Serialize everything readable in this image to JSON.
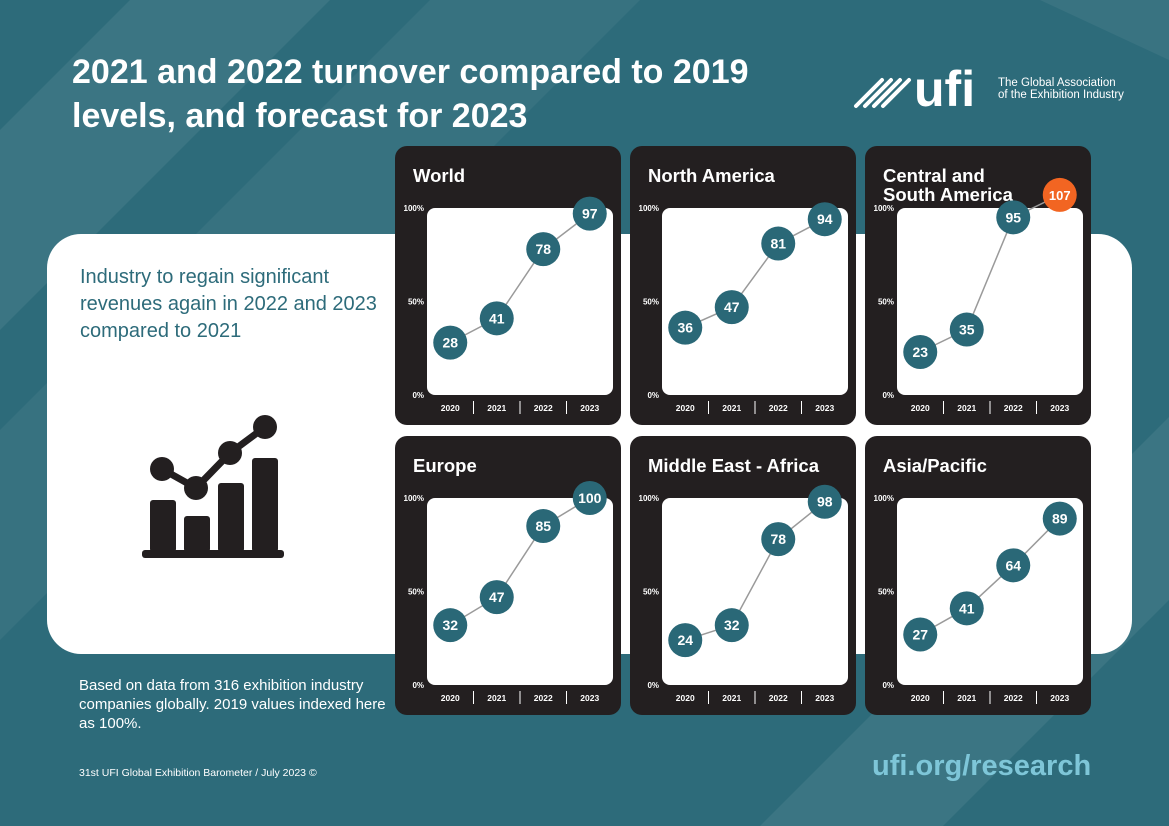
{
  "header": {
    "title": "2021 and 2022 turnover compared to 2019 levels, and forecast for 2023",
    "logo_mark": "ufi",
    "logo_text": "The Global Association of the Exhibition Industry"
  },
  "left": {
    "headline": "Industry to regain significant revenues again in 2022 and 2023 compared to 2021",
    "icon": "trend-chart-icon"
  },
  "footer": {
    "footnote": "Based on data from 316 exhibition industry companies globally. 2019 values indexed here as 100%.",
    "source": "31st UFI Global Exhibition Barometer / July 2023 ©",
    "url": "ufi.org/research"
  },
  "colors": {
    "background": "#2d6b7a",
    "marker": "#2a6877",
    "highlight": "#f26522",
    "panel": "#231f20",
    "url": "#7ec6d8"
  },
  "chart_data": [
    {
      "type": "line",
      "title": "World",
      "x": [
        "2020",
        "2021",
        "2022",
        "2023"
      ],
      "y_ticks": [
        "0%",
        "50%",
        "100%"
      ],
      "ylim": [
        0,
        100
      ],
      "series": [
        {
          "values": [
            28,
            41,
            78,
            97
          ]
        }
      ]
    },
    {
      "type": "line",
      "title": "North America",
      "x": [
        "2020",
        "2021",
        "2022",
        "2023"
      ],
      "y_ticks": [
        "0%",
        "50%",
        "100%"
      ],
      "ylim": [
        0,
        100
      ],
      "series": [
        {
          "values": [
            36,
            47,
            81,
            94
          ]
        }
      ]
    },
    {
      "type": "line",
      "title": "Central and South America",
      "x": [
        "2020",
        "2021",
        "2022",
        "2023"
      ],
      "y_ticks": [
        "0%",
        "50%",
        "100%"
      ],
      "ylim": [
        0,
        100
      ],
      "series": [
        {
          "values": [
            23,
            35,
            95,
            107
          ]
        }
      ],
      "highlight_index": 3
    },
    {
      "type": "line",
      "title": "Europe",
      "x": [
        "2020",
        "2021",
        "2022",
        "2023"
      ],
      "y_ticks": [
        "0%",
        "50%",
        "100%"
      ],
      "ylim": [
        0,
        100
      ],
      "series": [
        {
          "values": [
            32,
            47,
            85,
            100
          ]
        }
      ]
    },
    {
      "type": "line",
      "title": "Middle East - Africa",
      "x": [
        "2020",
        "2021",
        "2022",
        "2023"
      ],
      "y_ticks": [
        "0%",
        "50%",
        "100%"
      ],
      "ylim": [
        0,
        100
      ],
      "series": [
        {
          "values": [
            24,
            32,
            78,
            98
          ]
        }
      ]
    },
    {
      "type": "line",
      "title": "Asia/Pacific",
      "x": [
        "2020",
        "2021",
        "2022",
        "2023"
      ],
      "y_ticks": [
        "0%",
        "50%",
        "100%"
      ],
      "ylim": [
        0,
        100
      ],
      "series": [
        {
          "values": [
            27,
            41,
            64,
            89
          ]
        }
      ]
    }
  ]
}
